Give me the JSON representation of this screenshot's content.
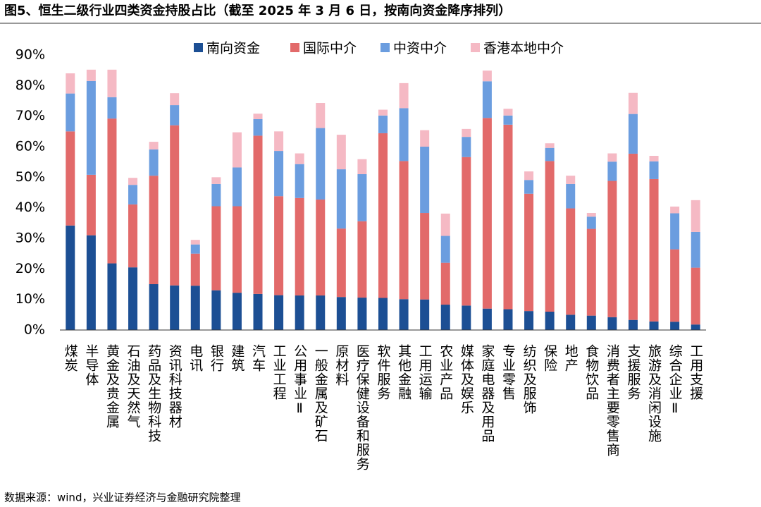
{
  "chart_data": {
    "type": "stacked_bar",
    "title": "图5、恒生二级行业四类资金持股占比（截至 2025 年 3 月 6 日，按南向资金降序排列）",
    "source": "数据来源：wind，兴业证券经济与金融研究院整理",
    "categories": [
      "煤炭",
      "半导体",
      "黄金及贵金属",
      "石油及天然气",
      "药品及生物科技",
      "资讯科技器材",
      "电讯",
      "银行",
      "建筑",
      "汽车",
      "工业工程",
      "公用事业Ⅱ",
      "一般金属及矿石",
      "原材料",
      "医疗保健设备和服务",
      "软件服务",
      "其他金融",
      "工用运输",
      "农业产品",
      "媒体及娱乐",
      "家庭电器及用品",
      "专业零售",
      "纺织及服饰",
      "保险",
      "地产",
      "食物饮品",
      "消费者主要零售商",
      "支援服务",
      "旅游及消闲设施",
      "综合企业Ⅱ",
      "工用支援"
    ],
    "series": [
      {
        "name": "南向资金",
        "color": "#1c4f94",
        "values": [
          34.2,
          31,
          21.8,
          20.5,
          15,
          14.6,
          14.5,
          13,
          12.2,
          11.8,
          11.4,
          11.3,
          11.3,
          10.8,
          10.6,
          10.5,
          10.1,
          10,
          8.3,
          8,
          7,
          6.8,
          6.2,
          6,
          5,
          4.7,
          4.2,
          3.3,
          2.8,
          2.7,
          1.8
        ]
      },
      {
        "name": "国际中介",
        "color": "#e26a6a",
        "values": [
          30.8,
          19.8,
          47.4,
          20.6,
          35.5,
          52.4,
          10.5,
          27.5,
          28.3,
          51.8,
          32.4,
          31.9,
          31.4,
          22.4,
          25,
          53.9,
          45.2,
          28.3,
          13.7,
          48.6,
          62.4,
          60.4,
          38.4,
          49.3,
          34.8,
          28.4,
          44.6,
          54.4,
          46.6,
          23.7,
          18.6
        ]
      },
      {
        "name": "中资中介",
        "color": "#6b9ddf",
        "values": [
          12.4,
          30.7,
          7,
          6.4,
          8.6,
          6.6,
          3,
          7.3,
          12.7,
          5.4,
          14.8,
          11.1,
          23.4,
          19.4,
          15.4,
          5.8,
          17.3,
          21.7,
          8.8,
          6.6,
          12,
          3,
          4.5,
          4.3,
          8,
          4,
          6.3,
          13,
          5.8,
          11.8,
          11.7
        ]
      },
      {
        "name": "香港本地中介",
        "color": "#f5b9c4",
        "values": [
          6.6,
          3.7,
          9,
          2.3,
          2.5,
          3.9,
          1.5,
          2.2,
          11.5,
          1.8,
          6.4,
          3.5,
          8.2,
          11.3,
          4.9,
          1.9,
          8.2,
          5.4,
          7.3,
          2.6,
          3.5,
          2.2,
          2.8,
          1.5,
          2.7,
          1.2,
          2.7,
          6.9,
          1.8,
          2.2,
          10.4
        ]
      }
    ],
    "ylim": [
      0,
      90
    ],
    "yticks": [
      {
        "value": 0,
        "label": "0%"
      },
      {
        "value": 10,
        "label": "10%"
      },
      {
        "value": 20,
        "label": "20%"
      },
      {
        "value": 30,
        "label": "30%"
      },
      {
        "value": 40,
        "label": "40%"
      },
      {
        "value": 50,
        "label": "50%"
      },
      {
        "value": 60,
        "label": "60%"
      },
      {
        "value": 70,
        "label": "70%"
      },
      {
        "value": 80,
        "label": "80%"
      },
      {
        "value": 90,
        "label": "90%"
      }
    ],
    "grid": false
  }
}
